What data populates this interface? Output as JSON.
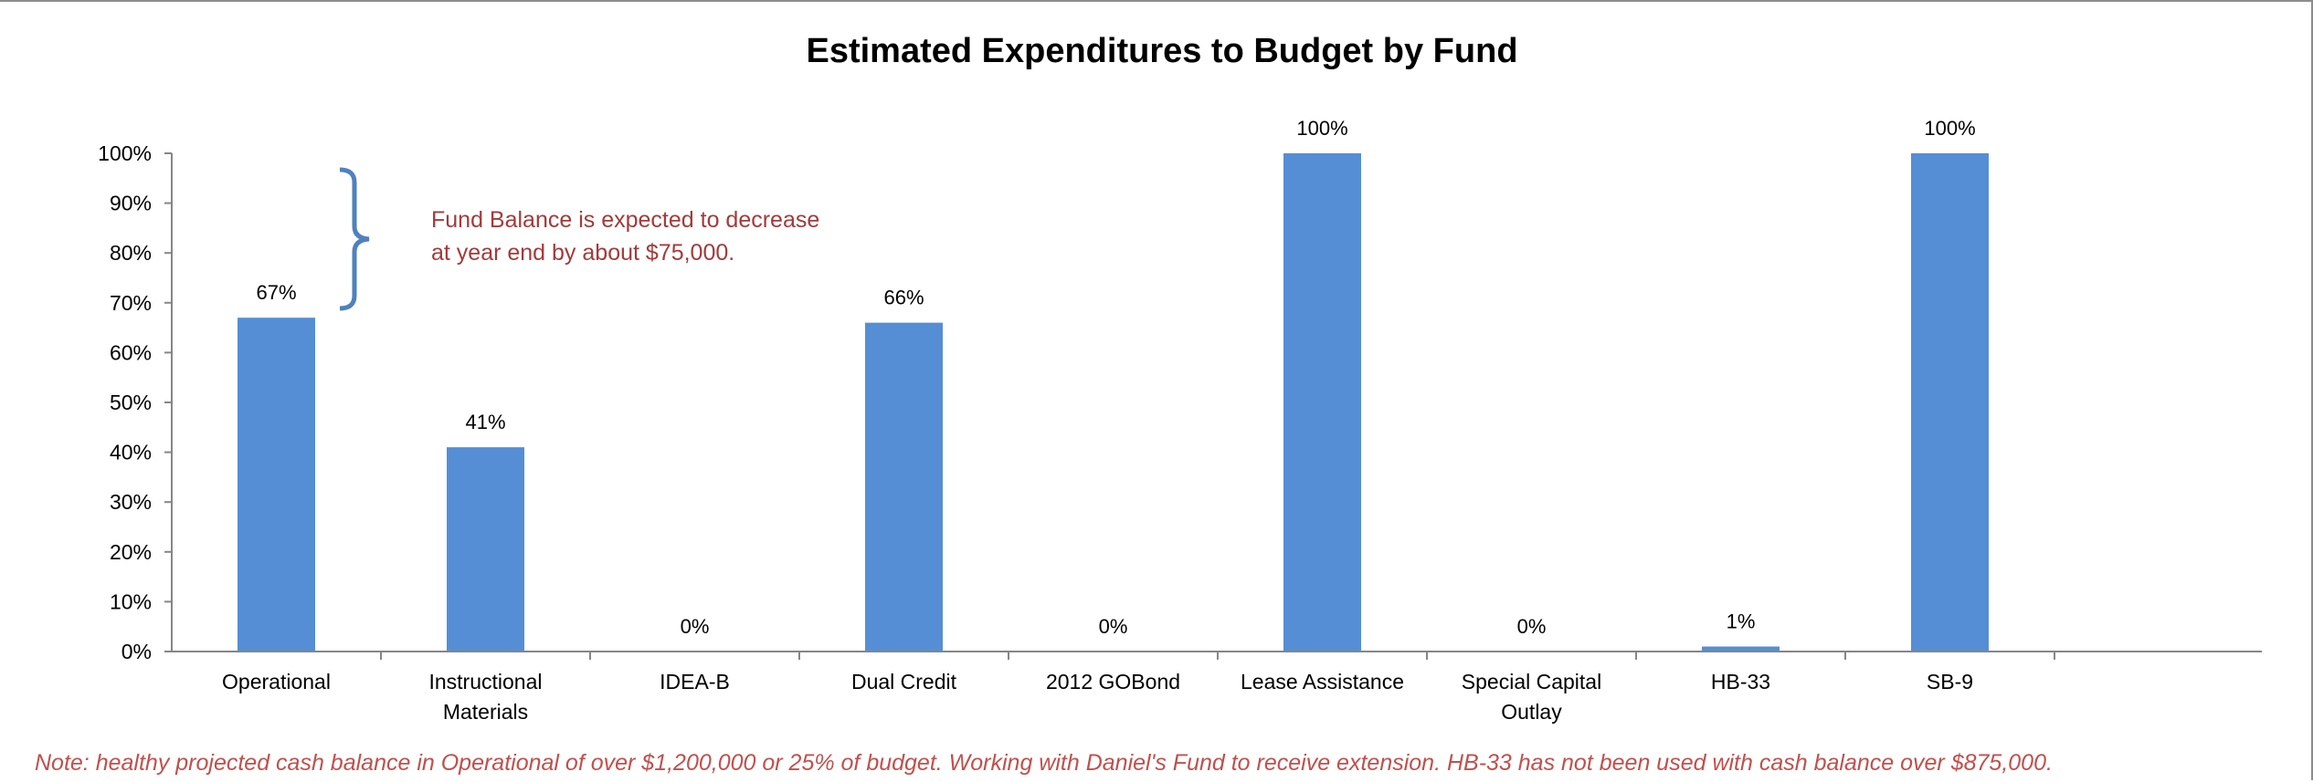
{
  "chart_data": {
    "type": "bar",
    "title": "Estimated Expenditures to Budget by Fund",
    "xlabel": "",
    "ylabel": "",
    "ylim": [
      0,
      100
    ],
    "y_ticks": [
      "0%",
      "10%",
      "20%",
      "30%",
      "40%",
      "50%",
      "60%",
      "70%",
      "80%",
      "90%",
      "100%"
    ],
    "categories": [
      [
        "Operational"
      ],
      [
        "Instructional",
        "Materials"
      ],
      [
        "IDEA-B"
      ],
      [
        "Dual Credit"
      ],
      [
        "2012 GOBond"
      ],
      [
        "Lease Assistance"
      ],
      [
        "Special Capital",
        "Outlay"
      ],
      [
        "HB-33"
      ],
      [
        "SB-9"
      ]
    ],
    "values": [
      67,
      41,
      0,
      66,
      0,
      100,
      0,
      1,
      100
    ],
    "data_labels": [
      "67%",
      "41%",
      "0%",
      "66%",
      "0%",
      "100%",
      "0%",
      "1%",
      "100%"
    ],
    "grid": false,
    "legend": "none",
    "colors": {
      "bar": "#558ed5",
      "axis": "#868686",
      "annotation": "#a33a3a",
      "note": "#c0504d",
      "brace": "#4f81bd"
    },
    "annotation": {
      "lines": [
        "Fund Balance is expected to decrease",
        "at year end by about $75,000."
      ]
    },
    "note": "Note: healthy projected cash balance in Operational of over $1,200,000 or 25% of budget.  Working with Daniel's Fund to receive extension.  HB-33 has not been used with cash balance over $875,000."
  }
}
